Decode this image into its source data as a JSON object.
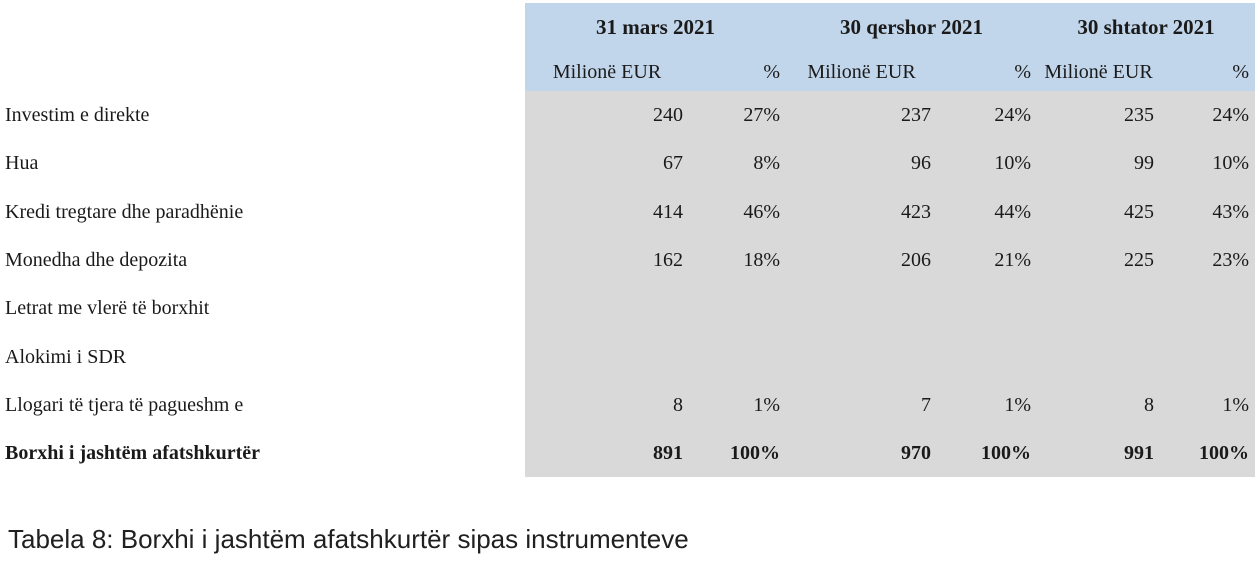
{
  "figure": {
    "caption": "Tabela 8: Borxhi i jashtëm afatshkurtër sipas instrumenteve"
  },
  "colors": {
    "header_bg": "#c2d6eb",
    "body_bg": "#d9d9d9",
    "text": "#1a1a1a"
  },
  "table": {
    "periods": [
      "31 mars 2021",
      "30 qershor 2021",
      "30 shtator 2021"
    ],
    "unit_header": "Milionë EUR",
    "pct_header": "%",
    "rows": [
      {
        "label": "Investim e direkte",
        "values": [
          "240",
          "27%",
          "237",
          "24%",
          "235",
          "24%"
        ]
      },
      {
        "label": "Hua",
        "values": [
          "67",
          "8%",
          "96",
          "10%",
          "99",
          "10%"
        ]
      },
      {
        "label": "Kredi tregtare dhe paradhënie",
        "values": [
          "414",
          "46%",
          "423",
          "44%",
          "425",
          "43%"
        ]
      },
      {
        "label": "Monedha dhe depozita",
        "values": [
          "162",
          "18%",
          "206",
          "21%",
          "225",
          "23%"
        ]
      },
      {
        "label": "Letrat me vlerë të borxhit",
        "values": [
          "",
          "",
          "",
          "",
          "",
          ""
        ]
      },
      {
        "label": "Alokimi i SDR",
        "values": [
          "",
          "",
          "",
          "",
          "",
          ""
        ]
      },
      {
        "label": "Llogari të tjera të pagueshm e",
        "values": [
          "8",
          "1%",
          "7",
          "1%",
          "8",
          "1%"
        ]
      },
      {
        "label": "Borxhi i jashtëm afatshkurtër",
        "values": [
          "891",
          "100%",
          "970",
          "100%",
          "991",
          "100%"
        ]
      }
    ]
  }
}
